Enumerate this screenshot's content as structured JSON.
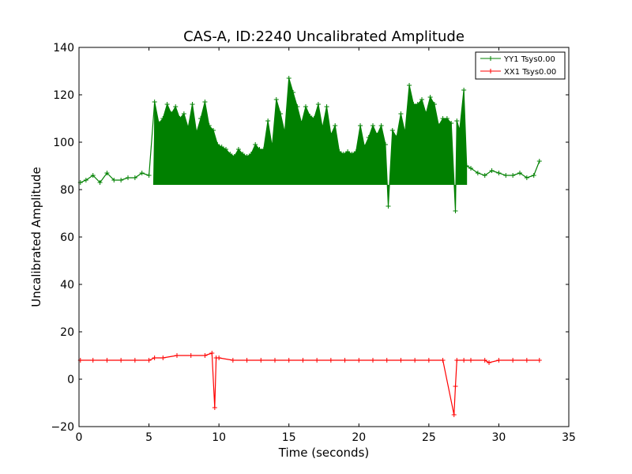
{
  "chart_data": {
    "type": "line",
    "title": "CAS-A, ID:2240 Uncalibrated Amplitude",
    "xlabel": "Time (seconds)",
    "ylabel": "Uncalibrated Amplitude",
    "xlim": [
      0,
      35
    ],
    "ylim": [
      -20,
      140
    ],
    "x_ticks": [
      "0",
      "5",
      "10",
      "15",
      "20",
      "25",
      "30",
      "35"
    ],
    "y_ticks": [
      "−20",
      "0",
      "20",
      "40",
      "60",
      "80",
      "100",
      "120",
      "140"
    ],
    "grid": false,
    "legend_position": "top-right",
    "series": [
      {
        "name": "YY1 Tsys0.00",
        "color": "#008000",
        "marker": "+",
        "x": [
          0.1,
          0.5,
          1.0,
          1.5,
          2.0,
          2.5,
          3.0,
          3.5,
          4.0,
          4.5,
          5.0,
          5.4,
          5.7,
          6.0,
          6.3,
          6.6,
          6.9,
          7.2,
          7.5,
          7.8,
          8.1,
          8.4,
          8.7,
          9.0,
          9.3,
          9.6,
          9.9,
          10.2,
          10.5,
          10.8,
          11.1,
          11.4,
          11.7,
          12.0,
          12.3,
          12.6,
          12.9,
          13.2,
          13.5,
          13.8,
          14.1,
          14.4,
          14.7,
          15.0,
          15.3,
          15.6,
          15.9,
          16.2,
          16.5,
          16.8,
          17.1,
          17.4,
          17.7,
          18.0,
          18.3,
          18.6,
          18.9,
          19.2,
          19.5,
          19.8,
          20.1,
          20.4,
          20.7,
          21.0,
          21.3,
          21.6,
          21.9,
          22.1,
          22.4,
          22.7,
          23.0,
          23.3,
          23.6,
          23.9,
          24.2,
          24.5,
          24.8,
          25.1,
          25.4,
          25.7,
          26.0,
          26.3,
          26.6,
          26.9,
          27.0,
          27.2,
          27.5,
          27.7,
          28.0,
          28.5,
          29.0,
          29.5,
          30.0,
          30.5,
          31.0,
          31.5,
          32.0,
          32.5,
          32.9
        ],
        "y": [
          83,
          84,
          86,
          83,
          87,
          84,
          84,
          85,
          85,
          87,
          86,
          117,
          108,
          110,
          116,
          112,
          115,
          110,
          112,
          106,
          116,
          104,
          110,
          117,
          107,
          105,
          99,
          98,
          97,
          95,
          94,
          97,
          95,
          94,
          95,
          99,
          97,
          97,
          109,
          98,
          118,
          112,
          104,
          127,
          121,
          115,
          108,
          115,
          111,
          110,
          116,
          106,
          115,
          103,
          107,
          96,
          95,
          96,
          95,
          96,
          107,
          98,
          102,
          107,
          103,
          107,
          99,
          73,
          105,
          102,
          112,
          104,
          124,
          116,
          116,
          118,
          112,
          119,
          116,
          107,
          110,
          110,
          108,
          71,
          109,
          105,
          122,
          90,
          89,
          87,
          86,
          88,
          87,
          86,
          86,
          87,
          85,
          86,
          92
        ],
        "band": {
          "x_start": 5.3,
          "x_end": 27.7,
          "y_min": 82
        }
      },
      {
        "name": "XX1 Tsys0.00",
        "color": "#ff0000",
        "marker": "+",
        "x": [
          0.1,
          1,
          2,
          3,
          4,
          5,
          5.4,
          6,
          7,
          8,
          9,
          9.5,
          9.7,
          9.8,
          10,
          11,
          12,
          13,
          14,
          15,
          16,
          17,
          18,
          19,
          20,
          21,
          22,
          23,
          24,
          25,
          26,
          26.8,
          26.9,
          27.0,
          27.5,
          28,
          29,
          29.3,
          30,
          31,
          32,
          32.9
        ],
        "y": [
          8,
          8,
          8,
          8,
          8,
          8,
          9,
          9,
          10,
          10,
          10,
          11,
          -12,
          9,
          9,
          8,
          8,
          8,
          8,
          8,
          8,
          8,
          8,
          8,
          8,
          8,
          8,
          8,
          8,
          8,
          8,
          -15,
          -3,
          8,
          8,
          8,
          8,
          7,
          8,
          8,
          8,
          8
        ]
      }
    ]
  }
}
